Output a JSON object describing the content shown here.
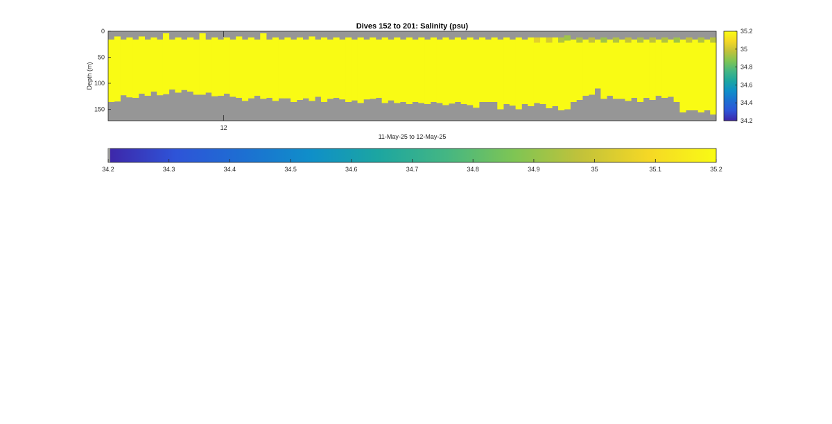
{
  "chart_data": {
    "type": "heatmap",
    "title": "Dives 152 to 201: Salinity (psu)",
    "xlabel": "11-May-25 to 12-May-25",
    "ylabel": "Depth (m)",
    "x_tick_labels": [
      "12"
    ],
    "y_ticks": [
      0,
      50,
      100,
      150
    ],
    "ylim": [
      0,
      172
    ],
    "y_reversed": true,
    "n_profiles": 100,
    "missing_color": "#969696",
    "surface_gap_depth_m": [
      16,
      10,
      16,
      12,
      16,
      10,
      16,
      12,
      16,
      4,
      16,
      12,
      16,
      12,
      16,
      4,
      16,
      12,
      16,
      12,
      16,
      10,
      16,
      12,
      16,
      4,
      16,
      12,
      16,
      12,
      16,
      12,
      16,
      10,
      16,
      12,
      16,
      12,
      16,
      12,
      16,
      12,
      16,
      12,
      16,
      12,
      16,
      12,
      16,
      12,
      16,
      12,
      16,
      12,
      16,
      12,
      16,
      12,
      16,
      12,
      16,
      12,
      16,
      12,
      16,
      12,
      16,
      12,
      16,
      12,
      16,
      12,
      16,
      12,
      16,
      12,
      16,
      12,
      16,
      12,
      16,
      12,
      16,
      12,
      16,
      12,
      16,
      12,
      16,
      12,
      16,
      12,
      16,
      12,
      16,
      12,
      16,
      12,
      16,
      12
    ],
    "bottom_depth_m": [
      136,
      135,
      123,
      127,
      128,
      120,
      124,
      116,
      123,
      121,
      112,
      118,
      113,
      116,
      122,
      122,
      118,
      125,
      124,
      120,
      126,
      128,
      134,
      129,
      124,
      130,
      128,
      134,
      129,
      129,
      136,
      132,
      129,
      134,
      126,
      136,
      130,
      128,
      131,
      136,
      133,
      138,
      131,
      130,
      128,
      138,
      133,
      138,
      136,
      140,
      136,
      138,
      140,
      136,
      138,
      142,
      139,
      136,
      140,
      142,
      147,
      136,
      136,
      136,
      150,
      140,
      143,
      150,
      140,
      144,
      138,
      140,
      148,
      144,
      152,
      150,
      136,
      132,
      124,
      122,
      110,
      130,
      124,
      130,
      130,
      134,
      128,
      136,
      128,
      132,
      124,
      128,
      126,
      136,
      156,
      152,
      152,
      156,
      152,
      160
    ],
    "surface_anomalies": [
      {
        "profile": 70,
        "depth_range": [
          12,
          22
        ],
        "value": 35.05
      },
      {
        "profile": 72,
        "depth_range": [
          12,
          22
        ],
        "value": 35.02
      },
      {
        "profile": 74,
        "depth_range": [
          12,
          22
        ],
        "value": 34.95
      },
      {
        "profile": 75,
        "depth_range": [
          8,
          18
        ],
        "value": 34.92
      },
      {
        "profile": 77,
        "depth_range": [
          12,
          22
        ],
        "value": 34.95
      },
      {
        "profile": 79,
        "depth_range": [
          12,
          22
        ],
        "value": 34.98
      },
      {
        "profile": 81,
        "depth_range": [
          12,
          22
        ],
        "value": 34.92
      },
      {
        "profile": 83,
        "depth_range": [
          12,
          22
        ],
        "value": 34.95
      },
      {
        "profile": 85,
        "depth_range": [
          12,
          22
        ],
        "value": 34.98
      },
      {
        "profile": 87,
        "depth_range": [
          12,
          22
        ],
        "value": 34.95
      },
      {
        "profile": 89,
        "depth_range": [
          12,
          22
        ],
        "value": 34.97
      },
      {
        "profile": 91,
        "depth_range": [
          12,
          22
        ],
        "value": 34.95
      },
      {
        "profile": 93,
        "depth_range": [
          12,
          22
        ],
        "value": 34.92
      },
      {
        "profile": 95,
        "depth_range": [
          12,
          22
        ],
        "value": 34.98
      },
      {
        "profile": 97,
        "depth_range": [
          12,
          22
        ],
        "value": 34.95
      },
      {
        "profile": 99,
        "depth_range": [
          12,
          22
        ],
        "value": 34.96
      }
    ],
    "background_value": 35.2,
    "color_limits": [
      34.2,
      35.2
    ],
    "colormap": [
      "#3e26a8",
      "#2e54d8",
      "#1d6fd2",
      "#0f8fc9",
      "#1ca6a1",
      "#44b683",
      "#7ec554",
      "#c2c23a",
      "#f5d825",
      "#f9fb14"
    ],
    "colorbar_right": {
      "ticks": [
        34.2,
        34.4,
        34.6,
        34.8,
        35,
        35.2
      ],
      "labels": [
        "34.2",
        "34.4",
        "34.6",
        "34.8",
        "35",
        "35.2"
      ]
    },
    "colorbar_bottom": {
      "ticks": [
        34.2,
        34.3,
        34.4,
        34.5,
        34.6,
        34.7,
        34.8,
        34.9,
        35,
        35.1,
        35.2
      ],
      "labels": [
        "34.2",
        "34.3",
        "34.4",
        "34.5",
        "34.6",
        "34.7",
        "34.8",
        "34.9",
        "35",
        "35.1",
        "35.2"
      ]
    }
  }
}
